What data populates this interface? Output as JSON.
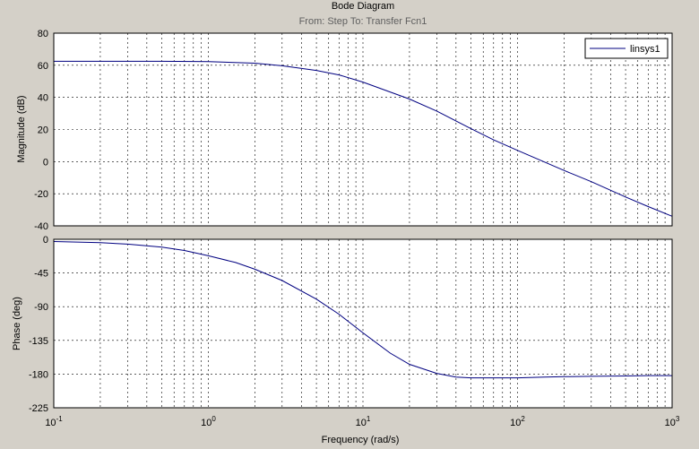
{
  "chart_data": {
    "type": "line",
    "title": "Bode Diagram",
    "subtitle": "From: Step  To: Transfer Fcn1",
    "xlabel": "Frequency  (rad/s)",
    "x_scale": "log",
    "x_lim": [
      0.1,
      1000
    ],
    "x_ticks": [
      {
        "base": "10",
        "exp": "-1"
      },
      {
        "base": "10",
        "exp": "0"
      },
      {
        "base": "10",
        "exp": "1"
      },
      {
        "base": "10",
        "exp": "2"
      },
      {
        "base": "10",
        "exp": "3"
      }
    ],
    "grid": true,
    "legend": {
      "position": "top-right",
      "entries": [
        "linsys1"
      ]
    },
    "line_color": "#000080",
    "panels": [
      {
        "name": "magnitude",
        "ylabel": "Magnitude (dB)",
        "ylim": [
          -40,
          80
        ],
        "yticks": [
          "80",
          "60",
          "40",
          "20",
          "0",
          "-20",
          "-40"
        ],
        "series": [
          {
            "name": "linsys1",
            "x": [
              0.1,
              0.2,
              0.5,
              1,
              2,
              3,
              5,
              7,
              10,
              20,
              30,
              50,
              70,
              100,
              200,
              300,
              500,
              700,
              1000
            ],
            "y": [
              62.5,
              62.5,
              62.5,
              62.3,
              61.3,
              59.7,
              56.8,
              54,
              49.5,
              39,
              31.5,
              20.5,
              13.5,
              7,
              -5.5,
              -12.5,
              -22,
              -28,
              -34
            ]
          }
        ]
      },
      {
        "name": "phase",
        "ylabel": "Phase (deg)",
        "ylim": [
          -225,
          0
        ],
        "yticks": [
          "0",
          "-45",
          "-90",
          "-135",
          "-180",
          "-225"
        ],
        "series": [
          {
            "name": "linsys1",
            "x": [
              0.1,
              0.2,
              0.3,
              0.5,
              0.7,
              1,
              1.5,
              2,
              3,
              5,
              7,
              10,
              15,
              20,
              30,
              40,
              50,
              70,
              100,
              150,
              200,
              300,
              500,
              700,
              1000
            ],
            "y": [
              -3,
              -4.5,
              -6.5,
              -10.5,
              -15,
              -22,
              -31,
              -40,
              -55,
              -80,
              -100,
              -125,
              -152,
              -167,
              -179,
              -184,
              -185,
              -185,
              -185,
              -184,
              -183.5,
              -183,
              -182.5,
              -182,
              -182
            ]
          }
        ]
      }
    ]
  }
}
